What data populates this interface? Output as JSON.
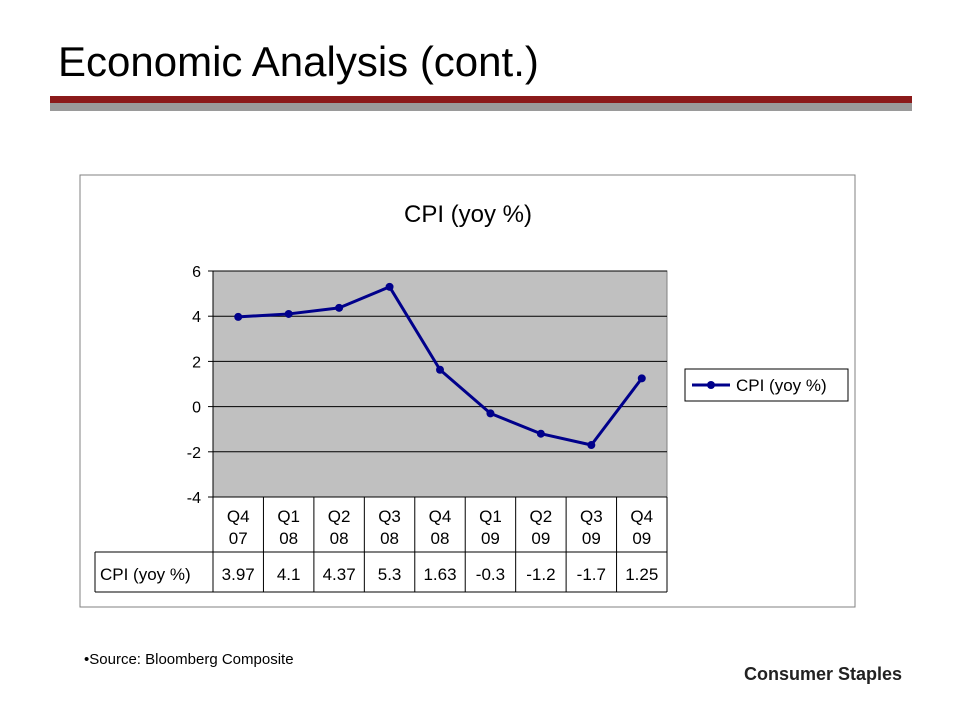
{
  "slide": {
    "title": "Economic Analysis (cont.)",
    "source": "Source: Bloomberg Composite",
    "footer": "Consumer Staples",
    "bullet": "•"
  },
  "colors": {
    "accent_red": "#8b1a1a",
    "accent_gray": "#9a9a9a",
    "plot_bg": "#c0c0c0",
    "series": "#00008b"
  },
  "chart_data": {
    "type": "line",
    "title": "CPI (yoy %)",
    "categories": [
      "Q4 07",
      "Q1 08",
      "Q2 08",
      "Q3 08",
      "Q4 08",
      "Q1 09",
      "Q2 09",
      "Q3 09",
      "Q4 09"
    ],
    "category_lines": [
      [
        "Q4",
        "07"
      ],
      [
        "Q1",
        "08"
      ],
      [
        "Q2",
        "08"
      ],
      [
        "Q3",
        "08"
      ],
      [
        "Q4",
        "08"
      ],
      [
        "Q1",
        "09"
      ],
      [
        "Q2",
        "09"
      ],
      [
        "Q3",
        "09"
      ],
      [
        "Q4",
        "09"
      ]
    ],
    "series": [
      {
        "name": "CPI (yoy %)",
        "values": [
          3.97,
          4.1,
          4.37,
          5.3,
          1.63,
          -0.3,
          -1.2,
          -1.7,
          1.25
        ],
        "value_labels": [
          "3.97",
          "4.1",
          "4.37",
          "5.3",
          "1.63",
          "-0.3",
          "-1.2",
          "-1.7",
          "1.25"
        ]
      }
    ],
    "ylim": [
      -4,
      6
    ],
    "yticks": [
      -4,
      -2,
      0,
      2,
      4,
      6
    ],
    "grid": true,
    "legend": "right",
    "data_table": true,
    "xlabel": "",
    "ylabel": ""
  }
}
